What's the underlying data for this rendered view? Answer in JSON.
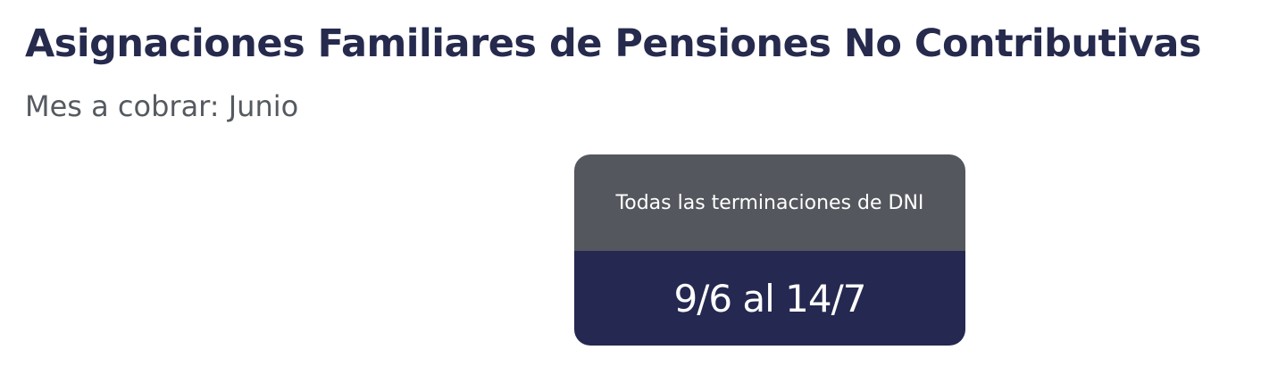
{
  "header": {
    "title": "Asignaciones Familiares de Pensiones No Contributivas",
    "subtitle": "Mes a cobrar: Junio"
  },
  "schedule_card": {
    "label": "Todas las terminaciones de DNI",
    "dates": "9/6 al 14/7"
  },
  "colors": {
    "title": "#262a4d",
    "card_header": "#54575d",
    "card_body": "#252850"
  }
}
